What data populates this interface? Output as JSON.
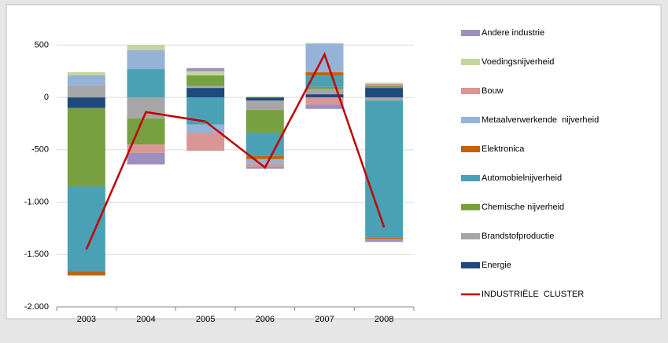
{
  "chart_data": {
    "type": "stacked-bar",
    "categories": [
      "2003",
      "2004",
      "2005",
      "2006",
      "2007",
      "2008"
    ],
    "series": [
      {
        "name": "Andere industrie",
        "color": "#9d8fc0",
        "values": [
          0,
          -110,
          30,
          -20,
          -40,
          -30
        ]
      },
      {
        "name": "Voedingsnijverheid",
        "color": "#c3d69b",
        "values": [
          30,
          50,
          40,
          10,
          10,
          10
        ]
      },
      {
        "name": "Bouw",
        "color": "#d99694",
        "values": [
          0,
          -80,
          -170,
          -30,
          -70,
          20
        ]
      },
      {
        "name": "Metaalverwerkende  nijverheid",
        "color": "#95b3d7",
        "values": [
          95,
          180,
          -80,
          -40,
          270,
          0
        ]
      },
      {
        "name": "Elektronica",
        "color": "#c0640c",
        "values": [
          -40,
          0,
          0,
          -30,
          30,
          -10
        ]
      },
      {
        "name": "Automobielnijverheid",
        "color": "#4aa0b5",
        "values": [
          -810,
          270,
          -260,
          -220,
          110,
          -1310
        ]
      },
      {
        "name": "Chemische nijverheid",
        "color": "#77a040",
        "values": [
          -750,
          -250,
          100,
          -220,
          20,
          20
        ]
      },
      {
        "name": "Brandstofproductie",
        "color": "#a6a6a6",
        "values": [
          115,
          -200,
          20,
          -90,
          50,
          -30
        ]
      },
      {
        "name": "Energie",
        "color": "#1f497d",
        "values": [
          -100,
          0,
          90,
          -30,
          30,
          90
        ]
      },
      {
        "name": "INDUSTRIËLE  CLUSTER",
        "color": "#c00000",
        "type": "line",
        "values": [
          -1450,
          -140,
          -230,
          -670,
          410,
          -1240
        ]
      }
    ],
    "ylim": [
      -2000,
      750
    ],
    "yticks": [
      {
        "value": -2000,
        "label": "-2.000"
      },
      {
        "value": -1500,
        "label": "-1.500"
      },
      {
        "value": -1000,
        "label": "-1.000"
      },
      -500,
      0,
      500
    ],
    "grid": true,
    "legend": "right"
  }
}
